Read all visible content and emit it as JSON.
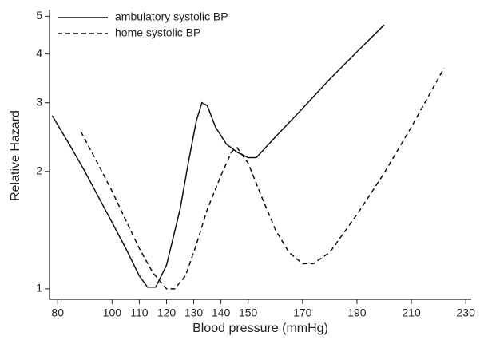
{
  "chart_data": {
    "type": "line",
    "log_y": true,
    "x_label": "Blood pressure (mmHg)",
    "y_label": "Relative Hazard",
    "xlim": [
      77,
      232
    ],
    "xticks": [
      80,
      100,
      110,
      120,
      130,
      140,
      150,
      170,
      190,
      210,
      230
    ],
    "ylim": [
      0.94,
      5.2
    ],
    "yticks": [
      1,
      2,
      3,
      4,
      5
    ],
    "legend": "top-left",
    "series": [
      {
        "name": "ambulatory systolic BP",
        "color": "#111111",
        "dash": "solid",
        "x": [
          78,
          85,
          90,
          95,
          100,
          105,
          110,
          113,
          116,
          120,
          125,
          128,
          131,
          133,
          135,
          138,
          142,
          146,
          150,
          153,
          160,
          170,
          180,
          190,
          200
        ],
        "values": [
          2.78,
          2.3,
          2.0,
          1.72,
          1.48,
          1.27,
          1.08,
          1.01,
          1.01,
          1.15,
          1.6,
          2.1,
          2.7,
          3.0,
          2.95,
          2.6,
          2.35,
          2.24,
          2.17,
          2.17,
          2.45,
          2.9,
          3.45,
          4.05,
          4.75
        ]
      },
      {
        "name": "home systolic BP",
        "color": "#111111",
        "dash": "dashed",
        "x": [
          88.5,
          95,
          100,
          105,
          110,
          115,
          120,
          123,
          127,
          131,
          135,
          140,
          144,
          146,
          150,
          155,
          160,
          165,
          170,
          174,
          180,
          190,
          200,
          210,
          222
        ],
        "values": [
          2.53,
          2.08,
          1.78,
          1.5,
          1.27,
          1.1,
          1.0,
          1.0,
          1.08,
          1.3,
          1.6,
          1.95,
          2.25,
          2.3,
          2.1,
          1.72,
          1.42,
          1.24,
          1.16,
          1.16,
          1.24,
          1.55,
          1.98,
          2.6,
          3.68
        ]
      }
    ]
  }
}
